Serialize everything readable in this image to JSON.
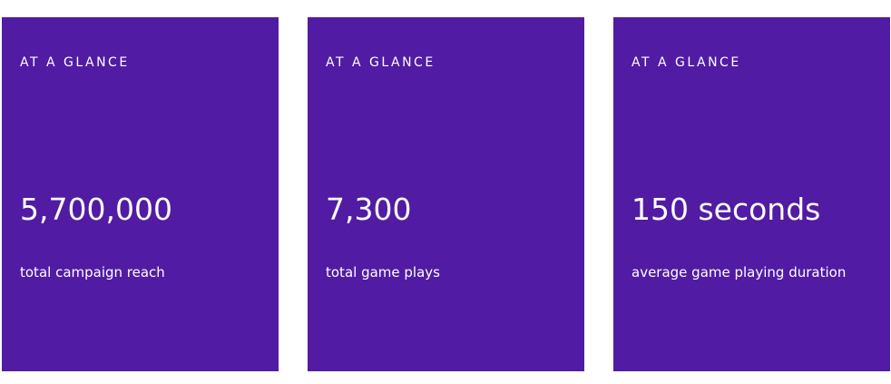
{
  "cards": [
    {
      "eyebrow": "AT A GLANCE",
      "stat": "5,700,000",
      "caption": "total campaign reach"
    },
    {
      "eyebrow": "AT A GLANCE",
      "stat": "7,300",
      "caption": "total game plays"
    },
    {
      "eyebrow": "AT A GLANCE",
      "stat": "150 seconds",
      "caption": "average game playing duration"
    }
  ]
}
